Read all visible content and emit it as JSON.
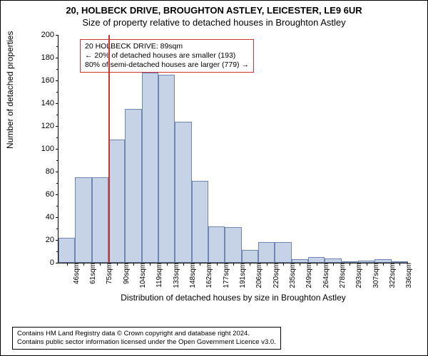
{
  "title": "20, HOLBECK DRIVE, BROUGHTON ASTLEY, LEICESTER, LE9 6UR",
  "subtitle": "Size of property relative to detached houses in Broughton Astley",
  "ylabel": "Number of detached properties",
  "xlabel": "Distribution of detached houses by size in Broughton Astley",
  "chart": {
    "type": "histogram",
    "bar_fill": "#c6d3e6",
    "bar_border": "#6f86b0",
    "background": "#ffffff",
    "ylim": [
      0,
      200
    ],
    "ytick_step": 20,
    "x_labels": [
      "46sqm",
      "61sqm",
      "75sqm",
      "90sqm",
      "104sqm",
      "119sqm",
      "133sqm",
      "148sqm",
      "162sqm",
      "177sqm",
      "191sqm",
      "206sqm",
      "220sqm",
      "235sqm",
      "249sqm",
      "264sqm",
      "278sqm",
      "293sqm",
      "307sqm",
      "322sqm",
      "336sqm"
    ],
    "values": [
      22,
      75,
      75,
      108,
      135,
      167,
      165,
      124,
      72,
      32,
      31,
      11,
      18,
      18,
      3,
      5,
      4,
      0,
      2,
      3,
      1
    ],
    "marker_index": 3,
    "marker_color": "#cc3333",
    "title_fontsize": 13,
    "label_fontsize": 12,
    "tick_fontsize": 11
  },
  "annotation": {
    "line1": "20 HOLBECK DRIVE: 89sqm",
    "line2": "← 20% of detached houses are smaller (193)",
    "line3": "80% of semi-detached houses are larger (779) →",
    "border_color": "#cc3333"
  },
  "footer": {
    "line1": "Contains HM Land Registry data © Crown copyright and database right 2024.",
    "line2": "Contains public sector information licensed under the Open Government Licence v3.0."
  }
}
